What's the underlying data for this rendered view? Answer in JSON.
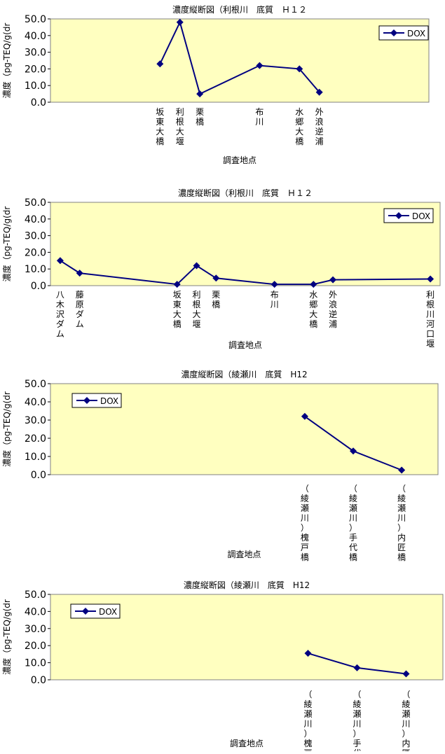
{
  "chart_data": [
    {
      "type": "line",
      "title": "濃度縦断図（利根川　底質　Ｈ１２",
      "ylabel": "濃度（pg-TEQ/g(dr",
      "xlabel": "調査地点",
      "ylim": [
        0,
        50
      ],
      "yticks": [
        "0.0",
        "10.0",
        "20.0",
        "30.0",
        "40.0",
        "50.0"
      ],
      "legend": "top-right",
      "categories": [
        "",
        "",
        "",
        "",
        "",
        "坂東大橋",
        "利根大堰",
        "栗橋",
        "",
        "",
        "布川",
        "",
        "水郷大橋",
        "外浪逆浦",
        "",
        "",
        "",
        "",
        ""
      ],
      "series": [
        {
          "name": "DOX",
          "color": "#000080",
          "values": [
            null,
            null,
            null,
            null,
            null,
            23,
            48,
            5,
            null,
            null,
            22,
            null,
            20,
            6,
            null,
            null,
            null,
            null,
            null
          ]
        }
      ]
    },
    {
      "type": "line",
      "title": "濃度縦断図（利根川　底質　Ｈ１２",
      "ylabel": "濃度（pg-TEQ/g(dr",
      "xlabel": "調査地点",
      "ylim": [
        0,
        50
      ],
      "yticks": [
        "0.0",
        "10.0",
        "20.0",
        "30.0",
        "40.0",
        "50.0"
      ],
      "legend": "top-right",
      "categories": [
        "八木沢ダム",
        "藤原ダム",
        "",
        "",
        "",
        "",
        "坂東大橋",
        "利根大堰",
        "栗橋",
        "",
        "",
        "布川",
        "",
        "水郷大橋",
        "外浪逆浦",
        "",
        "",
        "",
        "",
        "利根川河口堰"
      ],
      "series": [
        {
          "name": "DOX",
          "color": "#000080",
          "values": [
            15,
            7.5,
            null,
            null,
            null,
            null,
            0.8,
            12,
            4.5,
            null,
            null,
            0.8,
            null,
            0.8,
            3.5,
            null,
            null,
            null,
            null,
            4
          ]
        }
      ]
    },
    {
      "type": "line",
      "title": "濃度縦断図（綾瀬川　底質　H12",
      "ylabel": "濃度（pg-TEQ/g(dr",
      "xlabel": "調査地点",
      "ylim": [
        0,
        50
      ],
      "yticks": [
        "0.0",
        "10.0",
        "20.0",
        "30.0",
        "40.0",
        "50.0"
      ],
      "legend": "top-left",
      "categories": [
        "",
        "",
        "",
        "",
        "",
        "",
        "",
        "",
        "",
        "",
        "（綾瀬川）槐戸橋",
        "",
        "（綾瀬川）手代橋",
        "",
        "（綾瀬川）内匠橋",
        ""
      ],
      "series": [
        {
          "name": "DOX",
          "color": "#000080",
          "values": [
            null,
            null,
            null,
            null,
            null,
            null,
            null,
            null,
            null,
            null,
            32,
            null,
            13,
            null,
            2.5,
            null
          ]
        }
      ]
    },
    {
      "type": "line",
      "title": "濃度縦断図（綾瀬川　底質　H12",
      "ylabel": "濃度（pg-TEQ/g(dr",
      "xlabel": "調査地点",
      "ylim": [
        0,
        50
      ],
      "yticks": [
        "0.0",
        "10.0",
        "20.0",
        "30.0",
        "40.0",
        "50.0"
      ],
      "legend": "top-left",
      "categories": [
        "",
        "",
        "",
        "",
        "",
        "",
        "",
        "",
        "",
        "",
        "（綾瀬川）槐戸橋",
        "",
        "（綾瀬川）手代橋",
        "",
        "（綾瀬川）内匠橋",
        ""
      ],
      "series": [
        {
          "name": "DOX",
          "color": "#000080",
          "values": [
            null,
            null,
            null,
            null,
            null,
            null,
            null,
            null,
            null,
            null,
            15.5,
            null,
            7,
            null,
            3.5,
            null
          ]
        }
      ]
    }
  ]
}
